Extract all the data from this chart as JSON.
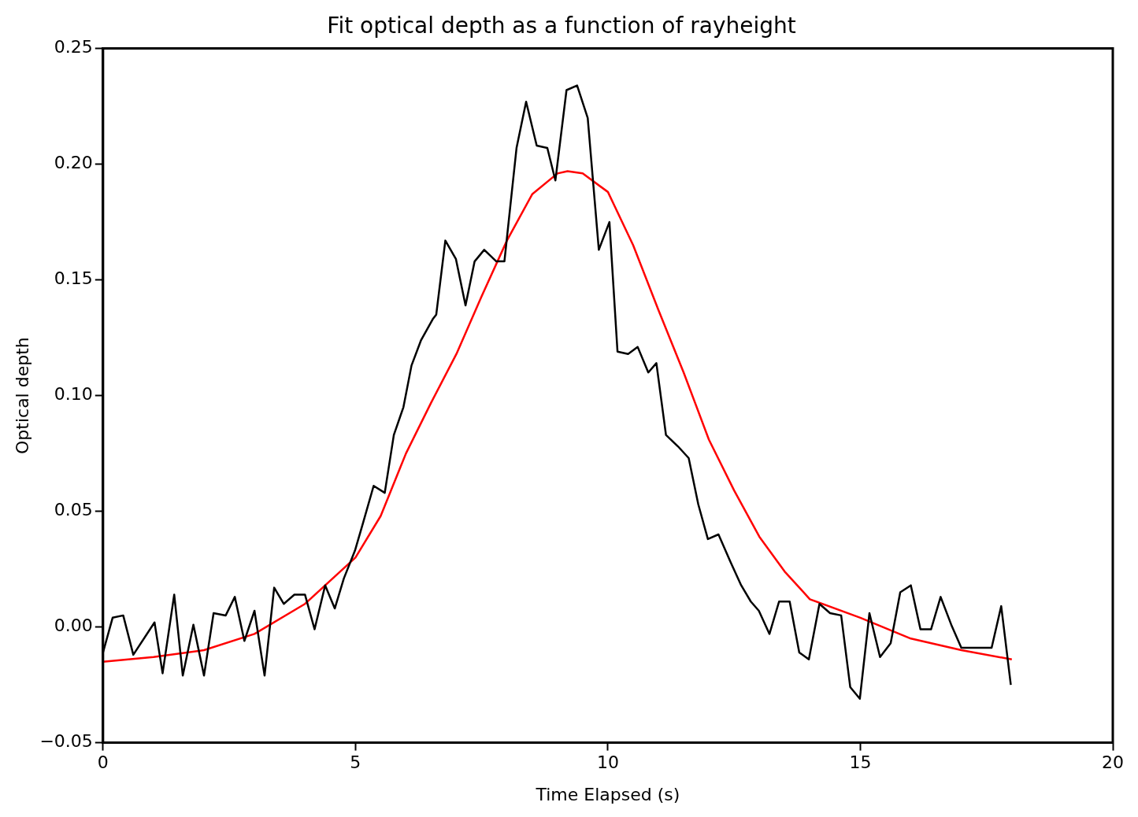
{
  "chart_data": {
    "type": "line",
    "title": "Fit optical depth as a function of rayheight",
    "xlabel": "Time Elapsed (s)",
    "ylabel": "Optical depth",
    "xlim": [
      0,
      20
    ],
    "xticks": [
      0,
      5,
      10,
      15,
      20
    ],
    "ylim": [
      -0.05,
      0.25
    ],
    "yticks": [
      {
        "value": -0.05,
        "label": "−0.05"
      },
      {
        "value": 0,
        "label": "0.00"
      },
      {
        "value": 0.05,
        "label": "0.05"
      },
      {
        "value": 0.1,
        "label": "0.10"
      },
      {
        "value": 0.15,
        "label": "0.15"
      },
      {
        "value": 0.2,
        "label": "0.20"
      },
      {
        "value": 0.25,
        "label": "0.25"
      }
    ],
    "grid": false,
    "legend": false,
    "marker": "none",
    "line_style": "solid",
    "series": [
      {
        "color": "#000000",
        "x": [
          0,
          0.19,
          0.4,
          0.6,
          1.02,
          1.18,
          1.41,
          1.58,
          1.79,
          2.0,
          2.19,
          2.43,
          2.61,
          2.8,
          3.0,
          3.2,
          3.39,
          3.58,
          3.79,
          4.0,
          4.19,
          4.4,
          4.59,
          4.77,
          4.99,
          5.15,
          5.36,
          5.58,
          5.76,
          5.95,
          6.11,
          6.3,
          6.53,
          6.6,
          6.78,
          6.99,
          7.18,
          7.36,
          7.55,
          7.79,
          7.95,
          8.19,
          8.38,
          8.59,
          8.8,
          8.96,
          9.18,
          9.39,
          9.6,
          9.82,
          10.03,
          10.19,
          10.4,
          10.59,
          10.8,
          10.96,
          11.15,
          11.39,
          11.6,
          11.79,
          11.98,
          12.19,
          12.43,
          12.64,
          12.83,
          12.99,
          13.2,
          13.39,
          13.6,
          13.79,
          13.98,
          14.19,
          14.4,
          14.62,
          14.8,
          14.99,
          15.18,
          15.39,
          15.6,
          15.79,
          16.0,
          16.19,
          16.4,
          16.59,
          16.8,
          17.0,
          17.39,
          17.6,
          17.79,
          17.98
        ],
        "values": [
          -0.011,
          0.004,
          0.005,
          -0.012,
          0.002,
          -0.02,
          0.014,
          -0.021,
          0.001,
          -0.021,
          0.006,
          0.005,
          0.013,
          -0.006,
          0.007,
          -0.021,
          0.017,
          0.01,
          0.014,
          0.014,
          -0.001,
          0.018,
          0.008,
          0.021,
          0.033,
          0.045,
          0.061,
          0.058,
          0.083,
          0.095,
          0.113,
          0.124,
          0.133,
          0.135,
          0.167,
          0.159,
          0.139,
          0.158,
          0.163,
          0.158,
          0.158,
          0.207,
          0.227,
          0.208,
          0.207,
          0.193,
          0.232,
          0.234,
          0.22,
          0.163,
          0.175,
          0.119,
          0.118,
          0.121,
          0.11,
          0.114,
          0.083,
          0.078,
          0.073,
          0.053,
          0.038,
          0.04,
          0.028,
          0.018,
          0.011,
          0.007,
          -0.003,
          0.011,
          0.011,
          -0.011,
          -0.014,
          0.01,
          0.006,
          0.005,
          -0.026,
          -0.031,
          0.006,
          -0.013,
          -0.007,
          0.015,
          0.018,
          -0.001,
          -0.001,
          0.013,
          0.001,
          -0.009,
          -0.009,
          -0.009,
          0.009,
          -0.025
        ]
      },
      {
        "color": "#ff0000",
        "x": [
          0,
          1,
          2,
          3,
          4,
          5,
          5.5,
          6,
          6.5,
          7,
          7.5,
          8,
          8.5,
          9,
          9.2,
          9.5,
          10,
          10.5,
          11,
          11.5,
          12,
          12.5,
          13,
          13.5,
          14,
          15,
          16,
          17,
          18
        ],
        "values": [
          -0.015,
          -0.013,
          -0.01,
          -0.003,
          0.01,
          0.03,
          0.048,
          0.075,
          0.097,
          0.118,
          0.143,
          0.167,
          0.187,
          0.196,
          0.197,
          0.196,
          0.188,
          0.165,
          0.137,
          0.11,
          0.081,
          0.059,
          0.039,
          0.024,
          0.012,
          0.004,
          -0.005,
          -0.01,
          -0.014
        ]
      }
    ]
  }
}
